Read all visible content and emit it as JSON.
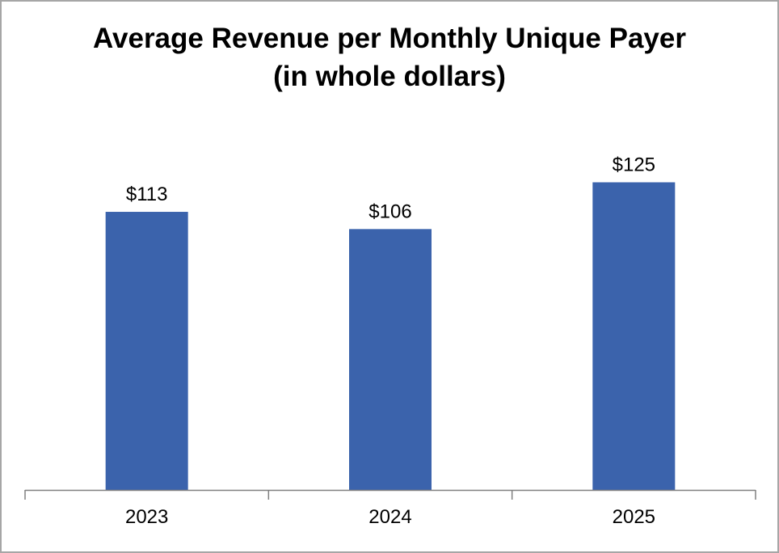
{
  "chart_data": {
    "type": "bar",
    "title": "Average Revenue per Monthly Unique Payer",
    "subtitle": "(in whole dollars)",
    "categories": [
      "2023",
      "2024",
      "2025"
    ],
    "values": [
      113,
      106,
      125
    ],
    "data_labels": [
      "$113",
      "$106",
      "$125"
    ],
    "xlabel": "",
    "ylabel": "",
    "ylim": [
      0,
      140
    ],
    "grid": false,
    "legend": "none",
    "bar_color": "#3b63ac",
    "axis_color": "#808080"
  }
}
